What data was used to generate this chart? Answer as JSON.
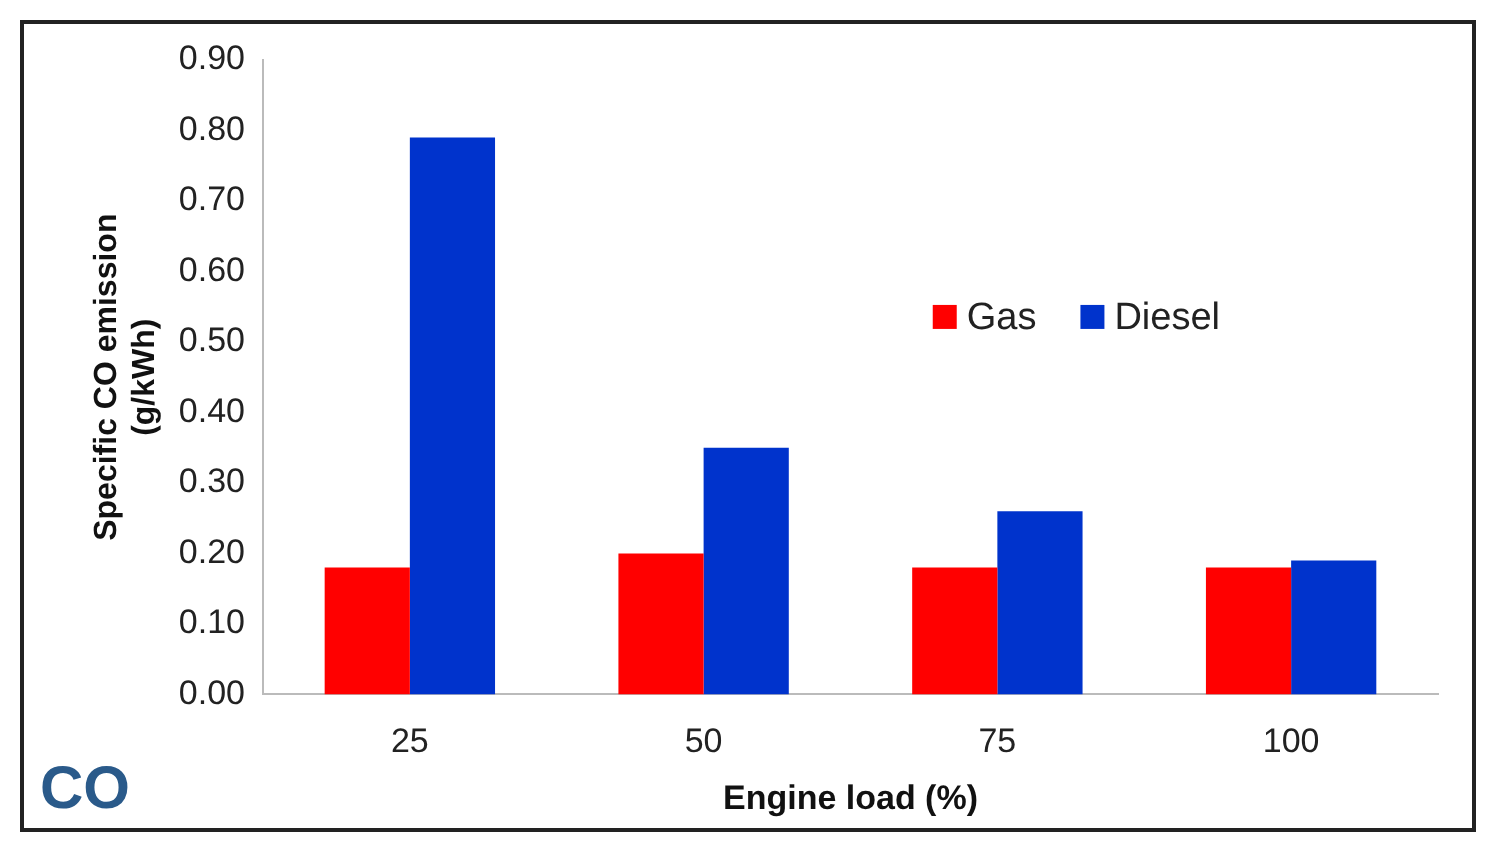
{
  "chart_data": {
    "type": "bar",
    "xlabel": "Engine load (%)",
    "ylabel": "Specific CO emission (g/kWh)",
    "categories": [
      "25",
      "50",
      "75",
      "100"
    ],
    "series": [
      {
        "name": "Gas",
        "color": "#ff0000",
        "values": [
          0.18,
          0.2,
          0.18,
          0.18
        ]
      },
      {
        "name": "Diesel",
        "color": "#0033cc",
        "values": [
          0.79,
          0.35,
          0.26,
          0.19
        ]
      }
    ],
    "ylim": [
      0,
      0.9
    ],
    "yticks": [
      {
        "value": 0,
        "label": "0.00"
      },
      {
        "value": 0.1,
        "label": "0.10"
      },
      {
        "value": 0.2,
        "label": "0.20"
      },
      {
        "value": 0.3,
        "label": "0.30"
      },
      {
        "value": 0.4,
        "label": "0.40"
      },
      {
        "value": 0.5,
        "label": "0.50"
      },
      {
        "value": 0.6,
        "label": "0.60"
      },
      {
        "value": 0.7,
        "label": "0.70"
      },
      {
        "value": 0.8,
        "label": "0.80"
      },
      {
        "value": 0.9,
        "label": "0.90"
      }
    ],
    "grid": false,
    "legend": "right",
    "annotations": [
      "CO"
    ]
  }
}
